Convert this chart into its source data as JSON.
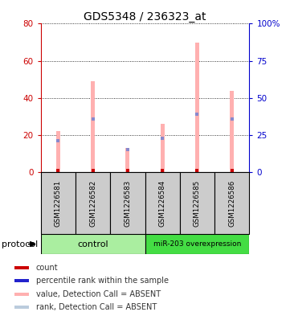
{
  "title": "GDS5348 / 236323_at",
  "samples": [
    "GSM1226581",
    "GSM1226582",
    "GSM1226583",
    "GSM1226584",
    "GSM1226585",
    "GSM1226586"
  ],
  "pink_values": [
    22,
    49,
    13,
    26,
    70,
    44
  ],
  "blue_ranks": [
    21,
    36,
    15,
    23,
    39,
    36
  ],
  "left_ylim": [
    0,
    80
  ],
  "right_ylim": [
    0,
    100
  ],
  "left_yticks": [
    0,
    20,
    40,
    60,
    80
  ],
  "right_yticks": [
    0,
    25,
    50,
    75,
    100
  ],
  "right_yticklabels": [
    "0",
    "25",
    "50",
    "75",
    "100%"
  ],
  "left_ycolor": "#cc0000",
  "right_ycolor": "#0000cc",
  "pink_bar_color": "#ffb0b0",
  "blue_marker_color": "#8888cc",
  "red_marker_color": "#cc0000",
  "sample_box_color": "#cccccc",
  "control_color": "#aaeea0",
  "overexpression_color": "#44dd44",
  "control_label": "control",
  "overexpression_label": "miR-203 overexpression",
  "protocol_label": "protocol",
  "bar_width": 0.12,
  "legend_colors": [
    "#cc0000",
    "#2222cc",
    "#ffb0b0",
    "#bbccdd"
  ],
  "legend_labels": [
    "count",
    "percentile rank within the sample",
    "value, Detection Call = ABSENT",
    "rank, Detection Call = ABSENT"
  ]
}
